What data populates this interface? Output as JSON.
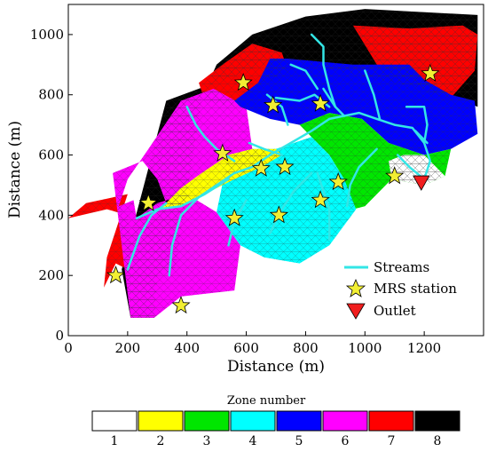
{
  "chart_data": {
    "type": "map",
    "xlabel": "Distance (m)",
    "ylabel": "Distance (m)",
    "xlim": [
      0,
      1400
    ],
    "ylim": [
      0,
      1100
    ],
    "xticks": [
      0,
      200,
      400,
      600,
      800,
      1000,
      1200
    ],
    "yticks": [
      0,
      200,
      400,
      600,
      800,
      1000
    ],
    "legend": {
      "position": "bottom-right",
      "items": [
        {
          "key": "streams",
          "label": "Streams",
          "color": "#33e6e6"
        },
        {
          "key": "mrs",
          "label": "MRS station",
          "color": "#f2ef33"
        },
        {
          "key": "outlet",
          "label": "Outlet",
          "color": "#f01e1e"
        }
      ]
    },
    "zone_legend": {
      "title": "Zone number",
      "zones": [
        {
          "label": "1",
          "color": "#ffffff"
        },
        {
          "label": "2",
          "color": "#ffff00"
        },
        {
          "label": "3",
          "color": "#00e600"
        },
        {
          "label": "4",
          "color": "#00ffff"
        },
        {
          "label": "5",
          "color": "#0000ff"
        },
        {
          "label": "6",
          "color": "#ff00ff"
        },
        {
          "label": "7",
          "color": "#ff0000"
        },
        {
          "label": "8",
          "color": "#000000"
        }
      ]
    },
    "zones": [
      {
        "zone": 8,
        "polygon": [
          [
            1000,
            1085
          ],
          [
            1380,
            1065
          ],
          [
            1380,
            760
          ],
          [
            1250,
            810
          ],
          [
            1000,
            860
          ],
          [
            720,
            920
          ],
          [
            440,
            820
          ],
          [
            330,
            780
          ],
          [
            180,
            220
          ],
          [
            210,
            60
          ],
          [
            290,
            60
          ],
          [
            300,
            200
          ],
          [
            360,
            220
          ],
          [
            450,
            790
          ],
          [
            500,
            900
          ],
          [
            620,
            1000
          ],
          [
            800,
            1060
          ]
        ]
      },
      {
        "zone": 7,
        "polygon": [
          [
            0,
            390
          ],
          [
            60,
            440
          ],
          [
            200,
            470
          ],
          [
            130,
            260
          ],
          [
            120,
            160
          ],
          [
            160,
            240
          ],
          [
            220,
            210
          ],
          [
            200,
            400
          ],
          [
            130,
            420
          ]
        ]
      },
      {
        "zone": 7,
        "polygon": [
          [
            440,
            840
          ],
          [
            520,
            900
          ],
          [
            620,
            970
          ],
          [
            720,
            940
          ],
          [
            740,
            880
          ],
          [
            640,
            830
          ],
          [
            560,
            760
          ],
          [
            460,
            780
          ]
        ]
      },
      {
        "zone": 7,
        "polygon": [
          [
            960,
            1030
          ],
          [
            1150,
            1020
          ],
          [
            1330,
            1030
          ],
          [
            1380,
            1000
          ],
          [
            1370,
            880
          ],
          [
            1290,
            790
          ],
          [
            1230,
            800
          ],
          [
            1150,
            850
          ],
          [
            1040,
            900
          ]
        ]
      },
      {
        "zone": 6,
        "polygon": [
          [
            210,
            60
          ],
          [
            290,
            60
          ],
          [
            380,
            130
          ],
          [
            560,
            150
          ],
          [
            580,
            300
          ],
          [
            500,
            410
          ],
          [
            400,
            470
          ],
          [
            300,
            440
          ],
          [
            230,
            390
          ],
          [
            220,
            450
          ],
          [
            170,
            430
          ],
          [
            200,
            520
          ],
          [
            270,
            620
          ],
          [
            380,
            780
          ],
          [
            490,
            820
          ],
          [
            600,
            760
          ],
          [
            620,
            620
          ],
          [
            540,
            600
          ],
          [
            450,
            540
          ],
          [
            380,
            490
          ],
          [
            330,
            440
          ],
          [
            300,
            520
          ],
          [
            250,
            580
          ],
          [
            150,
            540
          ]
        ]
      },
      {
        "zone": 5,
        "polygon": [
          [
            680,
            920
          ],
          [
            740,
            920
          ],
          [
            960,
            900
          ],
          [
            1040,
            900
          ],
          [
            1150,
            900
          ],
          [
            1200,
            850
          ],
          [
            1290,
            800
          ],
          [
            1370,
            780
          ],
          [
            1380,
            670
          ],
          [
            1290,
            620
          ],
          [
            1200,
            600
          ],
          [
            1080,
            640
          ],
          [
            990,
            720
          ],
          [
            880,
            740
          ],
          [
            780,
            700
          ],
          [
            680,
            720
          ],
          [
            580,
            760
          ],
          [
            560,
            780
          ],
          [
            640,
            840
          ]
        ]
      },
      {
        "zone": 3,
        "polygon": [
          [
            880,
            740
          ],
          [
            990,
            720
          ],
          [
            1080,
            640
          ],
          [
            1200,
            600
          ],
          [
            1290,
            620
          ],
          [
            1270,
            530
          ],
          [
            1200,
            500
          ],
          [
            1090,
            520
          ],
          [
            1000,
            430
          ],
          [
            960,
            420
          ],
          [
            930,
            520
          ],
          [
            880,
            600
          ],
          [
            820,
            660
          ],
          [
            780,
            700
          ]
        ]
      },
      {
        "zone": 4,
        "polygon": [
          [
            620,
            620
          ],
          [
            540,
            600
          ],
          [
            500,
            410
          ],
          [
            580,
            300
          ],
          [
            660,
            260
          ],
          [
            780,
            240
          ],
          [
            880,
            300
          ],
          [
            970,
            420
          ],
          [
            930,
            520
          ],
          [
            880,
            600
          ],
          [
            820,
            660
          ],
          [
            700,
            620
          ]
        ]
      },
      {
        "zone": 2,
        "polygon": [
          [
            330,
            440
          ],
          [
            380,
            490
          ],
          [
            450,
            540
          ],
          [
            540,
            600
          ],
          [
            620,
            620
          ],
          [
            700,
            620
          ],
          [
            720,
            600
          ],
          [
            650,
            560
          ],
          [
            560,
            520
          ],
          [
            460,
            470
          ],
          [
            380,
            430
          ],
          [
            300,
            420
          ]
        ]
      },
      {
        "zone": 1,
        "polygon": [
          [
            1090,
            520
          ],
          [
            1200,
            500
          ],
          [
            1270,
            530
          ],
          [
            1200,
            600
          ],
          [
            1130,
            600
          ],
          [
            1080,
            580
          ]
        ]
      }
    ],
    "streams": [
      [
        [
          340,
          200
        ],
        [
          350,
          300
        ],
        [
          380,
          400
        ],
        [
          440,
          460
        ],
        [
          500,
          500
        ],
        [
          560,
          540
        ],
        [
          620,
          560
        ],
        [
          680,
          600
        ],
        [
          750,
          640
        ],
        [
          820,
          680
        ],
        [
          880,
          720
        ]
      ],
      [
        [
          880,
          720
        ],
        [
          930,
          730
        ],
        [
          980,
          740
        ],
        [
          1040,
          720
        ],
        [
          1100,
          700
        ],
        [
          1160,
          690
        ],
        [
          1200,
          640
        ],
        [
          1220,
          580
        ],
        [
          1200,
          520
        ]
      ],
      [
        [
          860,
          820
        ],
        [
          900,
          760
        ],
        [
          930,
          730
        ]
      ],
      [
        [
          1000,
          880
        ],
        [
          1030,
          800
        ],
        [
          1050,
          720
        ]
      ],
      [
        [
          1140,
          760
        ],
        [
          1200,
          760
        ],
        [
          1210,
          700
        ],
        [
          1200,
          640
        ]
      ],
      [
        [
          820,
          1000
        ],
        [
          860,
          960
        ],
        [
          860,
          900
        ],
        [
          880,
          820
        ],
        [
          900,
          760
        ]
      ],
      [
        [
          750,
          900
        ],
        [
          800,
          880
        ],
        [
          840,
          820
        ]
      ],
      [
        [
          700,
          790
        ],
        [
          780,
          780
        ],
        [
          830,
          800
        ],
        [
          880,
          760
        ]
      ],
      [
        [
          670,
          800
        ],
        [
          720,
          760
        ],
        [
          740,
          700
        ]
      ],
      [
        [
          1110,
          600
        ],
        [
          1150,
          560
        ],
        [
          1200,
          520
        ]
      ],
      [
        [
          1170,
          680
        ],
        [
          1210,
          640
        ]
      ],
      [
        [
          230,
          390
        ],
        [
          300,
          420
        ],
        [
          380,
          430
        ],
        [
          460,
          470
        ],
        [
          540,
          520
        ]
      ],
      [
        [
          200,
          220
        ],
        [
          240,
          330
        ],
        [
          280,
          400
        ],
        [
          330,
          440
        ]
      ],
      [
        [
          400,
          760
        ],
        [
          430,
          700
        ],
        [
          460,
          660
        ],
        [
          500,
          620
        ],
        [
          560,
          580
        ]
      ],
      [
        [
          610,
          640
        ],
        [
          660,
          620
        ],
        [
          720,
          600
        ]
      ],
      [
        [
          540,
          300
        ],
        [
          560,
          380
        ],
        [
          600,
          450
        ]
      ],
      [
        [
          680,
          340
        ],
        [
          720,
          420
        ],
        [
          760,
          480
        ],
        [
          820,
          540
        ]
      ],
      [
        [
          880,
          320
        ],
        [
          880,
          420
        ],
        [
          860,
          480
        ],
        [
          840,
          540
        ]
      ],
      [
        [
          940,
          430
        ],
        [
          950,
          500
        ],
        [
          980,
          560
        ],
        [
          1040,
          620
        ]
      ]
    ],
    "mrs_stations": [
      [
        160,
        200
      ],
      [
        380,
        100
      ],
      [
        270,
        440
      ],
      [
        560,
        390
      ],
      [
        710,
        400
      ],
      [
        850,
        450
      ],
      [
        910,
        510
      ],
      [
        650,
        555
      ],
      [
        730,
        560
      ],
      [
        520,
        605
      ],
      [
        590,
        840
      ],
      [
        690,
        765
      ],
      [
        850,
        770
      ],
      [
        1220,
        870
      ],
      [
        1100,
        530
      ]
    ],
    "outlet": [
      1190,
      510
    ]
  }
}
